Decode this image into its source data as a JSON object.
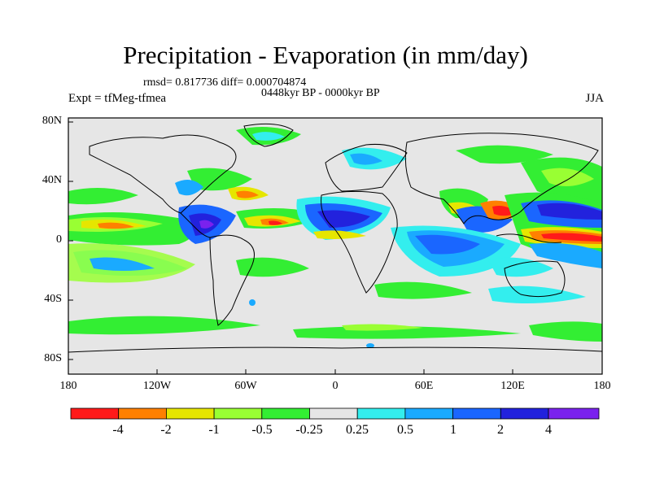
{
  "title": "Precipitation - Evaporation (in mm/day)",
  "stats": "rmsd= 0.817736 diff= 0.000704874",
  "period": "0448kyr BP - 0000kyr BP",
  "experiment": "Expt = tfMeg-tfmea",
  "season": "JJA",
  "axes": {
    "y_ticks": [
      "80N",
      "40N",
      "0",
      "40S",
      "80S"
    ],
    "x_ticks": [
      "180",
      "120W",
      "60W",
      "0",
      "60E",
      "120E",
      "180"
    ]
  },
  "colorbar": {
    "colors": [
      "#ff1a1a",
      "#ff8000",
      "#e6e600",
      "#99ff33",
      "#33ee33",
      "#e6e6e6",
      "#33eeee",
      "#1aaaff",
      "#1a66ff",
      "#2222dd",
      "#7a22ee"
    ],
    "labels": [
      "-4",
      "-2",
      "-1",
      "-0.5",
      "-0.25",
      "0.25",
      "0.5",
      "1",
      "2",
      "4"
    ]
  }
}
